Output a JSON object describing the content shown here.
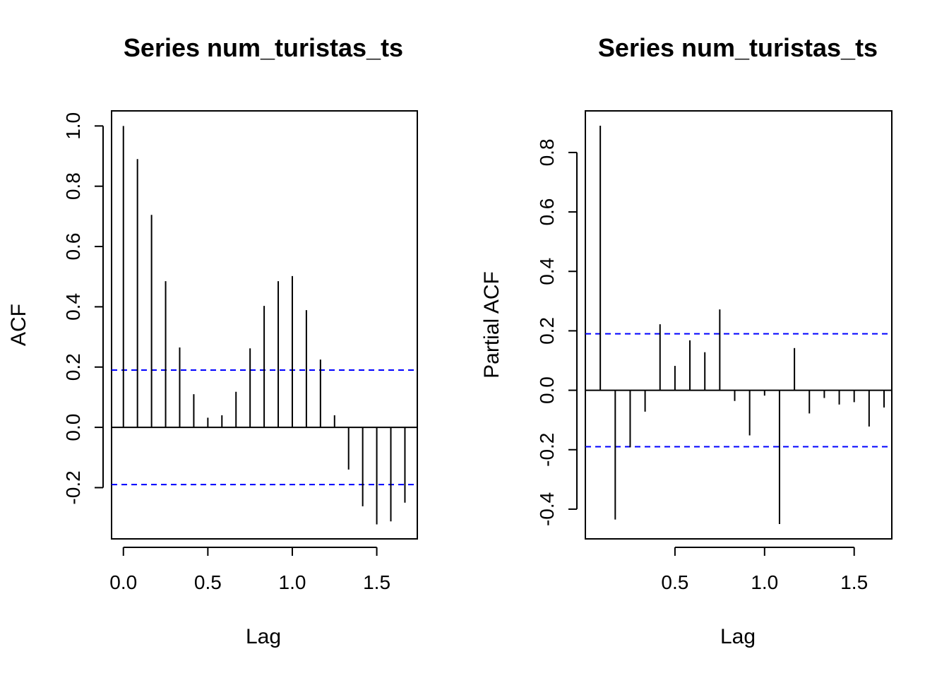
{
  "colors": {
    "background": "#ffffff",
    "ink": "#000000",
    "ci_line": "#0000ff"
  },
  "chart_data": [
    {
      "type": "bar",
      "title": "Series  num_turistas_ts",
      "xlabel": "Lag",
      "ylabel": "ACF",
      "xlim": [
        -0.07,
        1.74
      ],
      "ylim": [
        -0.37,
        1.05
      ],
      "xticks": [
        0.0,
        0.5,
        1.0,
        1.5
      ],
      "xtick_labels": [
        "0.0",
        "0.5",
        "1.0",
        "1.5"
      ],
      "yticks": [
        -0.2,
        0.0,
        0.2,
        0.4,
        0.6,
        0.8,
        1.0
      ],
      "ytick_labels": [
        "-0.2",
        "0.0",
        "0.2",
        "0.4",
        "0.6",
        "0.8",
        "1.0"
      ],
      "ci_bound": 0.19,
      "lags": [
        0.0,
        0.0833,
        0.1667,
        0.25,
        0.3333,
        0.4167,
        0.5,
        0.5833,
        0.6667,
        0.75,
        0.8333,
        0.9167,
        1.0,
        1.0833,
        1.1667,
        1.25,
        1.3333,
        1.4167,
        1.5,
        1.5833,
        1.6667
      ],
      "values": [
        1.0,
        0.89,
        0.705,
        0.485,
        0.265,
        0.11,
        0.032,
        0.04,
        0.118,
        0.262,
        0.403,
        0.485,
        0.502,
        0.389,
        0.225,
        0.04,
        -0.14,
        -0.262,
        -0.322,
        -0.312,
        -0.25
      ],
      "grid": false,
      "legend": false
    },
    {
      "type": "bar",
      "title": "Series  num_turistas_ts",
      "xlabel": "Lag",
      "ylabel": "Partial ACF",
      "xlim": [
        0.0,
        1.71
      ],
      "ylim": [
        -0.5,
        0.94
      ],
      "xticks": [
        0.5,
        1.0,
        1.5
      ],
      "xtick_labels": [
        "0.5",
        "1.0",
        "1.5"
      ],
      "yticks": [
        -0.4,
        -0.2,
        0.0,
        0.2,
        0.4,
        0.6,
        0.8
      ],
      "ytick_labels": [
        "-0.4",
        "-0.2",
        "0.0",
        "0.2",
        "0.4",
        "0.6",
        "0.8"
      ],
      "ci_bound": 0.19,
      "lags": [
        0.0833,
        0.1667,
        0.25,
        0.3333,
        0.4167,
        0.5,
        0.5833,
        0.6667,
        0.75,
        0.8333,
        0.9167,
        1.0,
        1.0833,
        1.1667,
        1.25,
        1.3333,
        1.4167,
        1.5,
        1.5833,
        1.6667
      ],
      "values": [
        0.89,
        -0.435,
        -0.192,
        -0.072,
        0.222,
        0.082,
        0.168,
        0.128,
        0.272,
        -0.036,
        -0.152,
        -0.018,
        -0.45,
        0.142,
        -0.078,
        -0.026,
        -0.048,
        -0.04,
        -0.122,
        -0.058
      ],
      "grid": false,
      "legend": false
    }
  ]
}
